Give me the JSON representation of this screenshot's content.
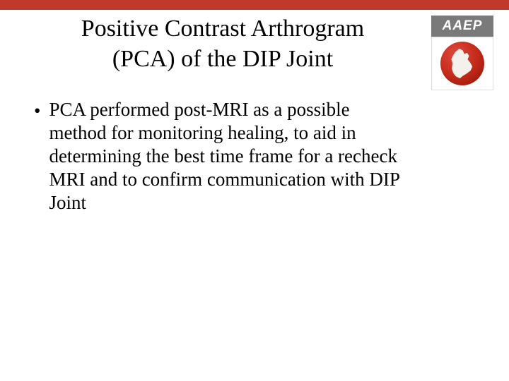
{
  "theme": {
    "top_bar_color": "#c0392b",
    "background_color": "#ffffff",
    "text_color": "#000000"
  },
  "logo": {
    "top_text": "AAEP",
    "top_bg": "#7a7a7a",
    "top_text_color": "#ffffff",
    "circle_gradient_start": "#e04a3a",
    "circle_gradient_end": "#8a1408",
    "horse_color": "#f4f0ec"
  },
  "slide": {
    "title_line1": "Positive Contrast Arthrogram",
    "title_line2": "(PCA) of the DIP Joint",
    "bullets": [
      {
        "text": "PCA performed post-MRI as a possible method for monitoring healing, to aid in determining the best time frame for a recheck MRI and to confirm communication with DIP Joint"
      }
    ]
  }
}
